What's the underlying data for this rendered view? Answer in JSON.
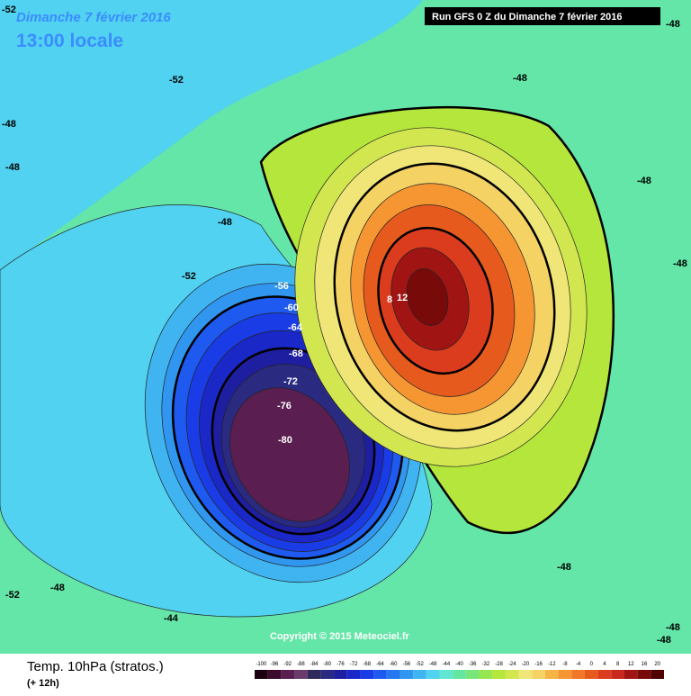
{
  "header": {
    "date": "Dimanche 7 février 2016",
    "time": "13:00 locale",
    "run": "Run GFS 0 Z du Dimanche 7 février 2016"
  },
  "map": {
    "contour_labels": [
      "-52",
      "-48",
      "-52",
      "-48",
      "-48",
      "-48",
      "-48",
      "-48",
      "-52",
      "-56",
      "-60",
      "-64",
      "-68",
      "-72",
      "-76",
      "-80",
      "8",
      "12",
      "-48",
      "-48",
      "-52",
      "-48",
      "-44",
      "-48",
      "-48"
    ],
    "copyright": "Copyright © 2015 Meteociel.fr"
  },
  "footer": {
    "title": "Temp. 10hPa (stratos.)",
    "lead": "(+ 12h)"
  },
  "legend": {
    "ticks": [
      "-100",
      "-96",
      "-92",
      "-88",
      "-84",
      "-80",
      "-76",
      "-72",
      "-68",
      "-64",
      "-60",
      "-56",
      "-52",
      "-48",
      "-44",
      "-40",
      "-36",
      "-32",
      "-28",
      "-24",
      "-20",
      "-16",
      "-12",
      "-8",
      "-4",
      "0",
      "4",
      "8",
      "12",
      "16",
      "20"
    ],
    "colors": [
      "#1a0010",
      "#3c0a2c",
      "#5a1e50",
      "#6a3a6a",
      "#302a5a",
      "#2a2a80",
      "#1e1ea0",
      "#1a28c8",
      "#1a3ce6",
      "#1e5af0",
      "#2478f0",
      "#3096f0",
      "#40b4f0",
      "#50d2f0",
      "#60e6d2",
      "#64e6a0",
      "#78e678",
      "#96e650",
      "#b4e63c",
      "#d2e650",
      "#f0e678",
      "#f5d264",
      "#f5b446",
      "#f59632",
      "#f07828",
      "#e65a1e",
      "#dc3c1e",
      "#c8281e",
      "#a01414",
      "#780a0a",
      "#500000"
    ]
  }
}
